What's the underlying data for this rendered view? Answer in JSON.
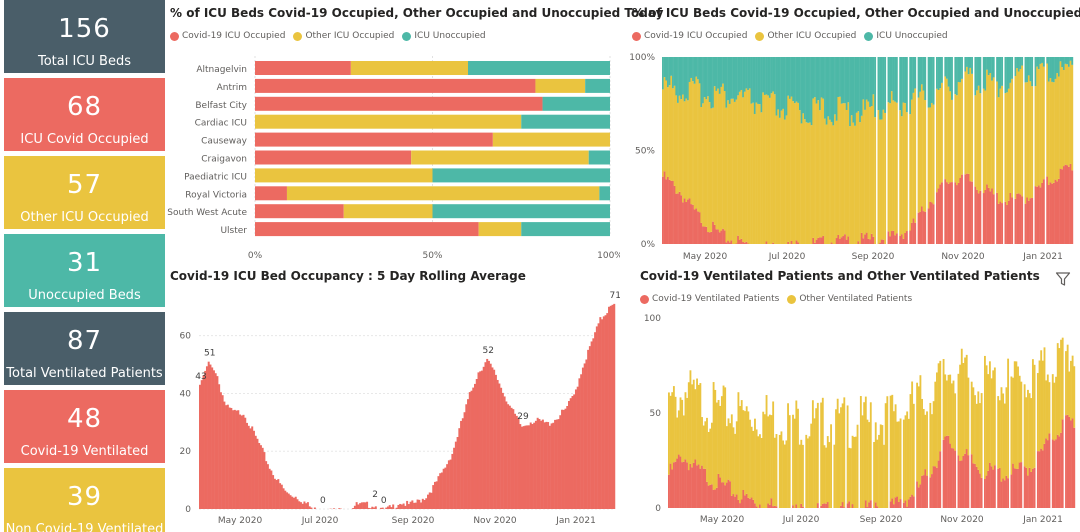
{
  "colors": {
    "covid": "#EC6A61",
    "other": "#EAC43F",
    "unoccupied": "#4DB8A7",
    "dark": "#4A5E69"
  },
  "kpis": [
    {
      "value": "156",
      "label": "Total ICU Beds",
      "color": "#4A5E69"
    },
    {
      "value": "68",
      "label": "ICU Covid Occupied",
      "color": "#EC6A61"
    },
    {
      "value": "57",
      "label": "Other ICU Occupied",
      "color": "#EAC43F"
    },
    {
      "value": "31",
      "label": "Unoccupied Beds",
      "color": "#4DB8A7"
    },
    {
      "value": "87",
      "label": "Total Ventilated Patients",
      "color": "#4A5E69"
    },
    {
      "value": "48",
      "label": "Covid-19 Ventilated",
      "color": "#EC6A61"
    },
    {
      "value": "39",
      "label": "Non Covid-19 Ventilated",
      "color": "#EAC43F"
    }
  ],
  "chart_data": [
    {
      "type": "bar",
      "orientation": "horizontal-stacked-100",
      "title": "% of ICU Beds Covid-19 Occupied, Other Occupied and Unoccupied Today",
      "legend": [
        "Covid-19 ICU Occupied",
        "Other ICU Occupied",
        "ICU Unoccupied"
      ],
      "categories": [
        "Altnagelvin",
        "Antrim",
        "Belfast City",
        "Cardiac ICU",
        "Causeway",
        "Craigavon",
        "Paediatric ICU",
        "Royal Victoria",
        "South West Acute",
        "Ulster"
      ],
      "series": [
        {
          "name": "Covid-19 ICU Occupied",
          "values": [
            27,
            79,
            81,
            0,
            67,
            44,
            0,
            9,
            25,
            63
          ]
        },
        {
          "name": "Other ICU Occupied",
          "values": [
            33,
            14,
            0,
            75,
            33,
            50,
            50,
            88,
            25,
            12
          ]
        },
        {
          "name": "ICU Unoccupied",
          "values": [
            40,
            7,
            19,
            25,
            0,
            6,
            50,
            3,
            50,
            25
          ]
        }
      ],
      "xticks": [
        "0%",
        "50%",
        "100%"
      ],
      "xlim": [
        0,
        100
      ]
    },
    {
      "type": "bar",
      "orientation": "vertical-stacked-100",
      "title": "% of ICU Beds Covid-19 Occupied, Other Occupied and Unoccupied",
      "legend": [
        "Covid-19 ICU Occupied",
        "Other ICU Occupied",
        "ICU Unoccupied"
      ],
      "yticks": [
        "0%",
        "50%",
        "100%"
      ],
      "xticks": [
        "May 2020",
        "Jul 2020",
        "Sep 2020",
        "Nov 2020",
        "Jan 2021"
      ],
      "covid_pct_keypoints": [
        [
          0,
          38
        ],
        [
          10,
          30
        ],
        [
          20,
          18
        ],
        [
          30,
          10
        ],
        [
          38,
          5
        ],
        [
          50,
          2
        ],
        [
          60,
          0
        ],
        [
          80,
          1
        ],
        [
          100,
          3
        ],
        [
          120,
          4
        ],
        [
          140,
          6
        ],
        [
          150,
          12
        ],
        [
          160,
          25
        ],
        [
          170,
          35
        ],
        [
          180,
          38
        ],
        [
          190,
          32
        ],
        [
          200,
          27
        ],
        [
          210,
          25
        ],
        [
          220,
          28
        ],
        [
          235,
          38
        ],
        [
          245,
          44
        ]
      ],
      "unoccupied_pct_keypoints": [
        [
          0,
          20
        ],
        [
          40,
          25
        ],
        [
          80,
          33
        ],
        [
          120,
          33
        ],
        [
          160,
          25
        ],
        [
          180,
          16
        ],
        [
          200,
          18
        ],
        [
          220,
          13
        ],
        [
          245,
          11
        ]
      ]
    },
    {
      "type": "area",
      "title": "Covid-19 ICU Bed Occupancy : 5 Day Rolling Average",
      "yticks": [
        0,
        20,
        40,
        60
      ],
      "ylim": [
        0,
        72
      ],
      "xticks": [
        "May 2020",
        "Jul 2020",
        "Sep 2020",
        "Nov 2020",
        "Jan 2021"
      ],
      "keypoints": [
        [
          0,
          43
        ],
        [
          5,
          51
        ],
        [
          10,
          46
        ],
        [
          15,
          36
        ],
        [
          20,
          34
        ],
        [
          25,
          34
        ],
        [
          30,
          28
        ],
        [
          35,
          22
        ],
        [
          40,
          15
        ],
        [
          45,
          10
        ],
        [
          50,
          6
        ],
        [
          55,
          5
        ],
        [
          60,
          3
        ],
        [
          65,
          0.5
        ],
        [
          70,
          0
        ],
        [
          80,
          0
        ],
        [
          85,
          1
        ],
        [
          90,
          2
        ],
        [
          100,
          2
        ],
        [
          105,
          0
        ],
        [
          110,
          1
        ],
        [
          115,
          3
        ],
        [
          120,
          2
        ],
        [
          125,
          3
        ],
        [
          130,
          5
        ],
        [
          135,
          9
        ],
        [
          140,
          14
        ],
        [
          145,
          20
        ],
        [
          150,
          30
        ],
        [
          155,
          40
        ],
        [
          160,
          48
        ],
        [
          165,
          52
        ],
        [
          170,
          47
        ],
        [
          175,
          40
        ],
        [
          180,
          34
        ],
        [
          185,
          29
        ],
        [
          190,
          31
        ],
        [
          195,
          31
        ],
        [
          200,
          30
        ],
        [
          205,
          32
        ],
        [
          210,
          35
        ],
        [
          215,
          40
        ],
        [
          220,
          50
        ],
        [
          225,
          58
        ],
        [
          230,
          66
        ],
        [
          235,
          70
        ],
        [
          238,
          71
        ]
      ],
      "labels": [
        {
          "x": 0,
          "text": "43"
        },
        {
          "x": 5,
          "text": "51"
        },
        {
          "x": 70,
          "text": "0"
        },
        {
          "x": 100,
          "text": "2"
        },
        {
          "x": 105,
          "text": "0"
        },
        {
          "x": 165,
          "text": "52"
        },
        {
          "x": 185,
          "text": "29"
        },
        {
          "x": 238,
          "text": "71"
        }
      ]
    },
    {
      "type": "bar",
      "orientation": "vertical-stacked",
      "title": "Covid-19 Ventilated Patients and Other Ventilated Patients",
      "legend": [
        "Covid-19 Ventilated Patients",
        "Other Ventilated Patients"
      ],
      "yticks": [
        0,
        50,
        100
      ],
      "ylim": [
        0,
        100
      ],
      "xticks": [
        "May 2020",
        "Jul 2020",
        "Sep 2020",
        "Nov 2020",
        "Jan 2021"
      ],
      "covid_keypoints": [
        [
          0,
          20
        ],
        [
          8,
          30
        ],
        [
          15,
          24
        ],
        [
          25,
          18
        ],
        [
          35,
          13
        ],
        [
          45,
          8
        ],
        [
          55,
          5
        ],
        [
          65,
          3
        ],
        [
          75,
          1
        ],
        [
          100,
          1
        ],
        [
          130,
          2
        ],
        [
          140,
          5
        ],
        [
          150,
          12
        ],
        [
          160,
          25
        ],
        [
          168,
          38
        ],
        [
          175,
          32
        ],
        [
          190,
          22
        ],
        [
          205,
          20
        ],
        [
          220,
          25
        ],
        [
          232,
          40
        ],
        [
          240,
          48
        ]
      ],
      "total_keypoints": [
        [
          0,
          60
        ],
        [
          10,
          68
        ],
        [
          30,
          58
        ],
        [
          60,
          55
        ],
        [
          90,
          52
        ],
        [
          120,
          52
        ],
        [
          140,
          56
        ],
        [
          160,
          70
        ],
        [
          170,
          80
        ],
        [
          185,
          74
        ],
        [
          205,
          72
        ],
        [
          220,
          75
        ],
        [
          235,
          85
        ],
        [
          240,
          88
        ]
      ]
    }
  ]
}
